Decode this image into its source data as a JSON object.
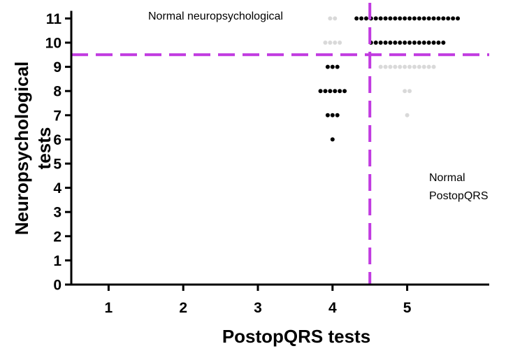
{
  "chart_data": {
    "type": "scatter",
    "xlabel": "PostopQRS tests",
    "ylabel_lines": [
      "Neuropsychological",
      "tests"
    ],
    "xlim": [
      0.5,
      5.6
    ],
    "ylim": [
      0,
      11.2
    ],
    "x_ticks": [
      "1",
      "2",
      "3",
      "4",
      "5"
    ],
    "y_ticks": [
      "0",
      "1",
      "2",
      "3",
      "4",
      "5",
      "6",
      "7",
      "8",
      "9",
      "10",
      "11"
    ],
    "thresholds": {
      "x": 4.5,
      "y": 9.5,
      "color": "#c13ae0"
    },
    "annotations": {
      "normal_neuro": "Normal neuropsychological",
      "normal_postop": [
        "Normal",
        "PostopQRS"
      ]
    },
    "colors": {
      "highlighted": "#000000",
      "faded": "#d9d9d9"
    },
    "groups": [
      {
        "x": 4,
        "y": 11,
        "n": 2,
        "color": "faded"
      },
      {
        "x": 4,
        "y": 10,
        "n": 4,
        "color": "faded"
      },
      {
        "x": 4,
        "y": 9,
        "n": 3,
        "color": "highlighted"
      },
      {
        "x": 4,
        "y": 8,
        "n": 6,
        "color": "highlighted"
      },
      {
        "x": 4,
        "y": 7,
        "n": 3,
        "color": "highlighted"
      },
      {
        "x": 4,
        "y": 6,
        "n": 1,
        "color": "highlighted"
      },
      {
        "x": 5,
        "y": 11,
        "n": 22,
        "color": "highlighted"
      },
      {
        "x": 5,
        "y": 10,
        "n": 16,
        "color": "highlighted"
      },
      {
        "x": 5,
        "y": 9,
        "n": 12,
        "color": "faded"
      },
      {
        "x": 5,
        "y": 8,
        "n": 2,
        "color": "faded"
      },
      {
        "x": 5,
        "y": 7,
        "n": 1,
        "color": "faded"
      }
    ]
  }
}
